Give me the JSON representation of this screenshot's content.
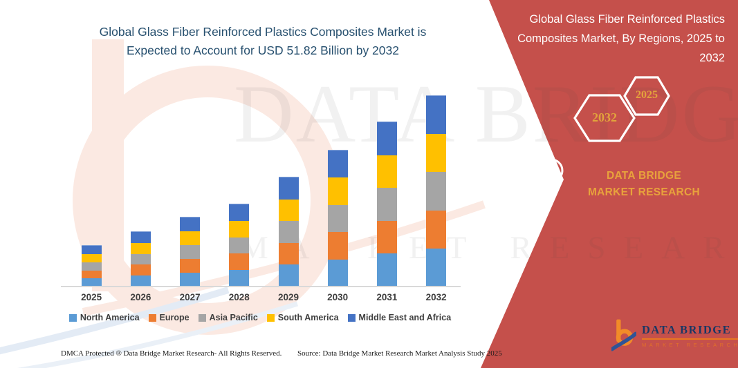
{
  "chart": {
    "title_line1": "Global Glass Fiber Reinforced Plastics Composites Market is",
    "title_line2": "Expected to Account for USD 51.82 Billion by 2032"
  },
  "chart_data": {
    "type": "bar",
    "stacked": true,
    "title": "Global Glass Fiber Reinforced Plastics Composites Market is Expected to Account for USD 51.82 Billion by 2032",
    "unit": "USD Billion",
    "values_estimated": true,
    "y_axis_visible": false,
    "grid": false,
    "legend_position": "bottom",
    "categories": [
      "2025",
      "2026",
      "2027",
      "2028",
      "2029",
      "2030",
      "2031",
      "2032"
    ],
    "totals": [
      11.0,
      14.8,
      18.7,
      22.3,
      29.6,
      37.0,
      44.6,
      51.82
    ],
    "series": [
      {
        "name": "North America",
        "color": "#5B9BD5",
        "values": [
          2.2,
          2.96,
          3.74,
          4.46,
          5.92,
          7.4,
          8.92,
          10.36
        ]
      },
      {
        "name": "Europe",
        "color": "#ED7D31",
        "values": [
          2.2,
          2.96,
          3.74,
          4.46,
          5.92,
          7.4,
          8.92,
          10.36
        ]
      },
      {
        "name": "Asia Pacific",
        "color": "#A5A5A5",
        "values": [
          2.2,
          2.96,
          3.74,
          4.46,
          5.92,
          7.4,
          8.92,
          10.36
        ]
      },
      {
        "name": "South America",
        "color": "#FFC000",
        "values": [
          2.2,
          2.96,
          3.74,
          4.46,
          5.92,
          7.4,
          8.92,
          10.36
        ]
      },
      {
        "name": "Middle East and Africa",
        "color": "#4472C4",
        "values": [
          2.2,
          2.96,
          3.74,
          4.46,
          5.92,
          7.4,
          8.92,
          10.36
        ]
      }
    ]
  },
  "side_panel": {
    "heading": "Global Glass Fiber Reinforced Plastics Composites Market, By Regions, 2025 to 2032",
    "hexagon_end_year": "2032",
    "hexagon_start_year": "2025",
    "brand_text": "DATA BRIDGE MARKET RESEARCH"
  },
  "logo": {
    "title": "DATA BRIDGE",
    "subtitle": "MARKET RESEARCH"
  },
  "footer": {
    "dmca": "DMCA Protected ® Data Bridge Market Research-  All Rights Reserved.",
    "source": "Source: Data Bridge Market Research  Market Analysis Study 2025"
  },
  "watermark": {
    "brand_large": "DATA BRIDGE",
    "brand_spaced": "MARKET RESEARCH"
  },
  "colors": {
    "panel_red": "#C5504B",
    "gold_accent": "#E8A23C",
    "title_blue": "#27506F",
    "axis_gray": "#D9D9D9",
    "logo_navy": "#1B3764",
    "logo_orange": "#E87722"
  }
}
